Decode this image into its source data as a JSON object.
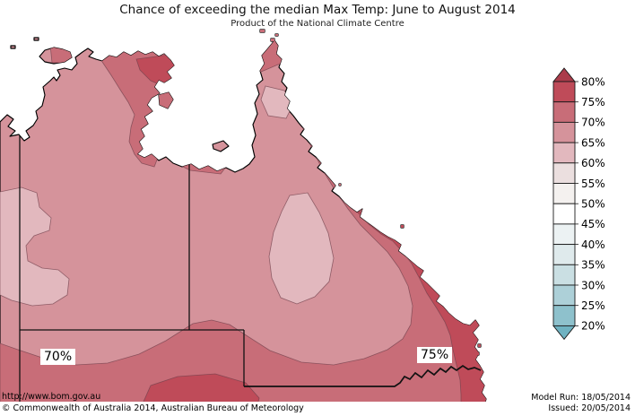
{
  "title": "Chance of exceeding the median Max Temp: June to August 2014",
  "subtitle": "Product of the National Climate Centre",
  "map": {
    "labels": [
      {
        "text": "70%"
      },
      {
        "text": "75%"
      }
    ],
    "band_colors": {
      "60-65": "#e2b8be",
      "65-70": "#d5939b",
      "70-75": "#c86d78",
      "75-80": "#bf4b59"
    },
    "coastline_color": "#000000",
    "border_color": "#111111",
    "contour_line_color": "#6f3f4a",
    "ocean_color": "#ffffff"
  },
  "legend": {
    "tick_labels": [
      "80%",
      "75%",
      "70%",
      "65%",
      "60%",
      "55%",
      "50%",
      "45%",
      "40%",
      "35%",
      "30%",
      "25%",
      "20%"
    ],
    "segment_colors": [
      "#bf4b59",
      "#c86d78",
      "#d5939b",
      "#e2b8be",
      "#ebdfdf",
      "#f4f1ef",
      "#ffffff",
      "#ecf2f3",
      "#dfeaec",
      "#cadfe3",
      "#add0d8",
      "#8ec1cc"
    ],
    "arrow_top_color": "#ab3c4b",
    "arrow_bottom_color": "#6fb2c1",
    "outline_color": "#1a1a1a"
  },
  "footer": {
    "url": "http://www.bom.gov.au",
    "copyright": "©  Commonwealth of Australia 2014, Australian Bureau of Meteorology",
    "model_run": "Model Run: 18/05/2014",
    "issued": "Issued: 20/05/2014"
  },
  "chart_data": {
    "type": "choropleth-map",
    "title": "Chance of exceeding the median Max Temp: June to August 2014",
    "subtitle": "Product of the National Climate Centre",
    "variable": "Chance of exceeding the median maximum temperature",
    "period": "June to August 2014",
    "units": "percent",
    "region_shown": "Northern Australia (Northern Territory and Queensland)",
    "legend_scale_percent": [
      80,
      75,
      70,
      65,
      60,
      55,
      50,
      45,
      40,
      35,
      30,
      25,
      20
    ],
    "band_labels_top_to_bottom": [
      ">80",
      "75-80",
      "70-75",
      "65-70",
      "60-65",
      "55-60",
      "50-55",
      "45-50",
      "40-45",
      "35-40",
      "30-35",
      "25-30",
      "20-25",
      "<20"
    ],
    "band_colors_top_to_bottom": [
      "#ab3c4b",
      "#bf4b59",
      "#c86d78",
      "#d5939b",
      "#e2b8be",
      "#ebdfdf",
      "#f4f1ef",
      "#ffffff",
      "#ecf2f3",
      "#dfeaec",
      "#cadfe3",
      "#add0d8",
      "#8ec1cc",
      "#6fb2c1"
    ],
    "labeled_contours_percent": [
      70,
      75
    ],
    "visible_bands_on_map": [
      "60-65",
      "65-70",
      "70-75",
      "75-80"
    ],
    "model_run_date": "18/05/2014",
    "issued_date": "20/05/2014"
  }
}
